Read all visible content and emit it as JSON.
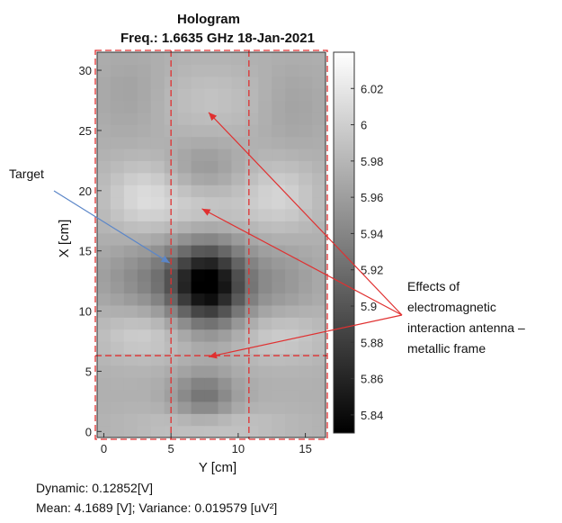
{
  "chart_data": {
    "type": "heatmap",
    "title": "Hologram",
    "subtitle": "Freq.: 1.6635 GHz  18-Jan-2021",
    "xlabel": "Y [cm]",
    "ylabel": "X [cm]",
    "xlim": [
      -0.5,
      16.5
    ],
    "ylim": [
      -0.5,
      31.5
    ],
    "x_ticks": [
      "0",
      "5",
      "10",
      "15"
    ],
    "x_tick_values": [
      0,
      5,
      10,
      15
    ],
    "y_ticks": [
      "0",
      "5",
      "10",
      "15",
      "20",
      "25",
      "30"
    ],
    "y_tick_values": [
      0,
      5,
      10,
      15,
      20,
      25,
      30
    ],
    "colormap": "gray",
    "clim": [
      5.83,
      6.04
    ],
    "colorbar_ticks": [
      "6.02",
      "6",
      "5.98",
      "5.96",
      "5.94",
      "5.92",
      "5.9",
      "5.88",
      "5.86",
      "5.84"
    ],
    "colorbar_tick_values": [
      6.02,
      6.0,
      5.98,
      5.96,
      5.94,
      5.92,
      5.9,
      5.88,
      5.86,
      5.84
    ],
    "field": {
      "baseline": 5.975,
      "features": [
        {
          "y": 7.8,
          "x": 12.2,
          "amplitude": -0.145,
          "sigma_y": 1.9,
          "sigma_x": 2.3
        },
        {
          "y": 3.8,
          "x": 12.8,
          "amplitude": -0.035,
          "sigma_y": 2.8,
          "sigma_x": 2.0
        },
        {
          "y": 13.0,
          "x": 12.5,
          "amplitude": -0.022,
          "sigma_y": 2.0,
          "sigma_x": 2.2
        },
        {
          "y": 7.5,
          "x": 3.0,
          "amplitude": -0.05,
          "sigma_y": 1.6,
          "sigma_x": 1.4
        },
        {
          "y": 7.5,
          "x": 22.0,
          "amplitude": -0.02,
          "sigma_y": 1.8,
          "sigma_x": 1.5
        },
        {
          "y": 7.5,
          "x": 18.5,
          "amplitude": 0.02,
          "sigma_y": 2.2,
          "sigma_x": 1.5
        },
        {
          "y": 3.0,
          "x": 19.5,
          "amplitude": 0.035,
          "sigma_y": 2.0,
          "sigma_x": 2.0
        },
        {
          "y": 13.0,
          "x": 19.5,
          "amplitude": 0.03,
          "sigma_y": 2.0,
          "sigma_x": 2.0
        },
        {
          "y": 3.0,
          "x": 8.0,
          "amplitude": 0.025,
          "sigma_y": 2.5,
          "sigma_x": 1.5
        },
        {
          "y": 13.0,
          "x": 8.0,
          "amplitude": 0.025,
          "sigma_y": 2.5,
          "sigma_x": 1.5
        },
        {
          "y": 8.0,
          "x": 27.5,
          "amplitude": 0.015,
          "sigma_y": 3.0,
          "sigma_x": 2.0
        },
        {
          "y": 2.0,
          "x": 28.0,
          "amplitude": -0.012,
          "sigma_y": 1.8,
          "sigma_x": 2.5
        },
        {
          "y": 14.0,
          "x": 27.0,
          "amplitude": -0.012,
          "sigma_y": 1.8,
          "sigma_x": 2.5
        },
        {
          "y": 8.0,
          "x": 0.5,
          "amplitude": 0.02,
          "sigma_y": 4.0,
          "sigma_x": 1.0
        }
      ]
    },
    "overlay_lines": {
      "vertical_dashed_at_y": [
        5.0,
        10.8
      ],
      "horizontal_dashed_at_x": 6.3,
      "outer_frame_y": [
        -0.5,
        16.5
      ],
      "outer_frame_x": [
        -0.5,
        31.5
      ],
      "color": "#e03030"
    },
    "annotations": {
      "target": {
        "text": "Target",
        "arrow_color": "#5b86c8",
        "points_to": {
          "y": 4.9,
          "x": 14.0
        }
      },
      "effects": {
        "lines": [
          "Effects of",
          "electromagnetic",
          "interaction antenna –",
          "metallic frame"
        ],
        "arrow_color": "#e03030",
        "points_to": [
          {
            "y": 7.8,
            "x": 26.5
          },
          {
            "y": 7.3,
            "x": 18.5
          },
          {
            "y": 7.8,
            "x": 6.2
          }
        ]
      }
    }
  },
  "footer": {
    "dynamic": "Dynamic: 0.12852[V]",
    "mean_variance": "Mean: 4.1689 [V];  Variance: 0.019579 [uV²]"
  }
}
